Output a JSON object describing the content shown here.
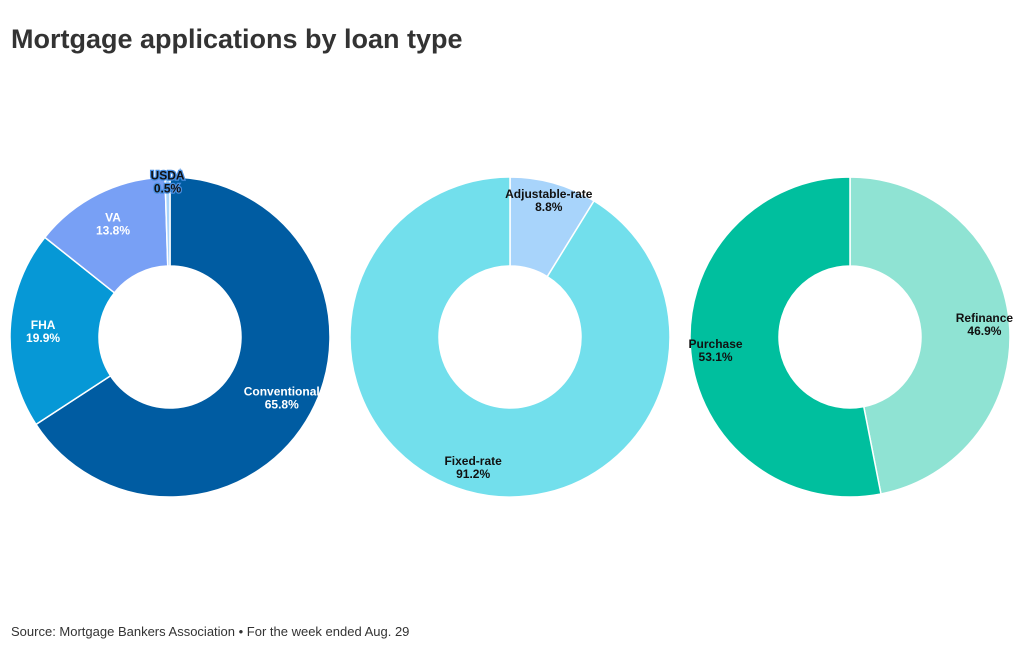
{
  "title": "Mortgage applications by loan type",
  "source": "Source: Mortgage Bankers Association • For the week ended Aug. 29",
  "chart_data": [
    {
      "type": "pie",
      "variant": "donut",
      "slices": [
        {
          "label": "Conventional",
          "value": 65.8,
          "display": "65.8%",
          "color": "#005ca2",
          "text": "light"
        },
        {
          "label": "FHA",
          "value": 19.9,
          "display": "19.9%",
          "color": "#0698d6",
          "text": "light"
        },
        {
          "label": "VA",
          "value": 13.8,
          "display": "13.8%",
          "color": "#78a0f5",
          "text": "light"
        },
        {
          "label": "USDA",
          "value": 0.5,
          "display": "0.5%",
          "color": "#a8d4fb",
          "text": "halo"
        }
      ]
    },
    {
      "type": "pie",
      "variant": "donut",
      "slices": [
        {
          "label": "Adjustable-rate",
          "value": 8.8,
          "display": "8.8%",
          "color": "#a8d4fb",
          "text": "dark"
        },
        {
          "label": "Fixed-rate",
          "value": 91.2,
          "display": "91.2%",
          "color": "#72dfec",
          "text": "dark"
        }
      ]
    },
    {
      "type": "pie",
      "variant": "donut",
      "slices": [
        {
          "label": "Refinance",
          "value": 46.9,
          "display": "46.9%",
          "color": "#8fe3d3",
          "text": "dark"
        },
        {
          "label": "Purchase",
          "value": 53.1,
          "display": "53.1%",
          "color": "#00bf9e",
          "text": "dark"
        }
      ]
    }
  ]
}
